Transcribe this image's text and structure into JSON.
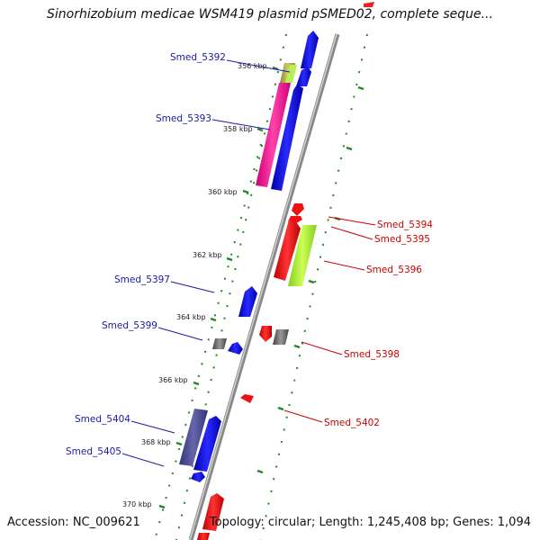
{
  "title": "Sinorhizobium medicae WSM419 plasmid pSMED02, complete seque...",
  "footer": {
    "accession": "Accession: NC_009621",
    "topology": "Topology: circular; Length: 1,245,408 bp; Genes: 1,094"
  },
  "ticks": [
    "356 kbp",
    "358 kbp",
    "360 kbp",
    "362 kbp",
    "364 kbp",
    "366 kbp",
    "368 kbp",
    "370 kbp"
  ],
  "genes": [
    {
      "label": "Smed_5392",
      "strand": "plus",
      "color": "#1a1acc"
    },
    {
      "label": "Smed_5393",
      "strand": "plus",
      "color": "#ff2299"
    },
    {
      "label": "Smed_5394",
      "strand": "minus",
      "color": "#ee1111"
    },
    {
      "label": "Smed_5395",
      "strand": "minus",
      "color": "#ee1111"
    },
    {
      "label": "Smed_5396",
      "strand": "minus",
      "color": "#aaee33"
    },
    {
      "label": "Smed_5397",
      "strand": "plus",
      "color": "#1a1acc"
    },
    {
      "label": "Smed_5399",
      "strand": "plus",
      "color": "#777777"
    },
    {
      "label": "Smed_5398",
      "strand": "minus",
      "color": "#777777"
    },
    {
      "label": "Smed_5402",
      "strand": "minus",
      "color": "#ee1111"
    },
    {
      "label": "Smed_5404",
      "strand": "plus",
      "color": "#4a4a99"
    },
    {
      "label": "Smed_5405",
      "strand": "plus",
      "color": "#1a1acc"
    }
  ],
  "colors": {
    "backbone": "#999999",
    "plus_label": "#1a1aaa",
    "minus_label": "#cc0000",
    "ring": "#228822"
  }
}
